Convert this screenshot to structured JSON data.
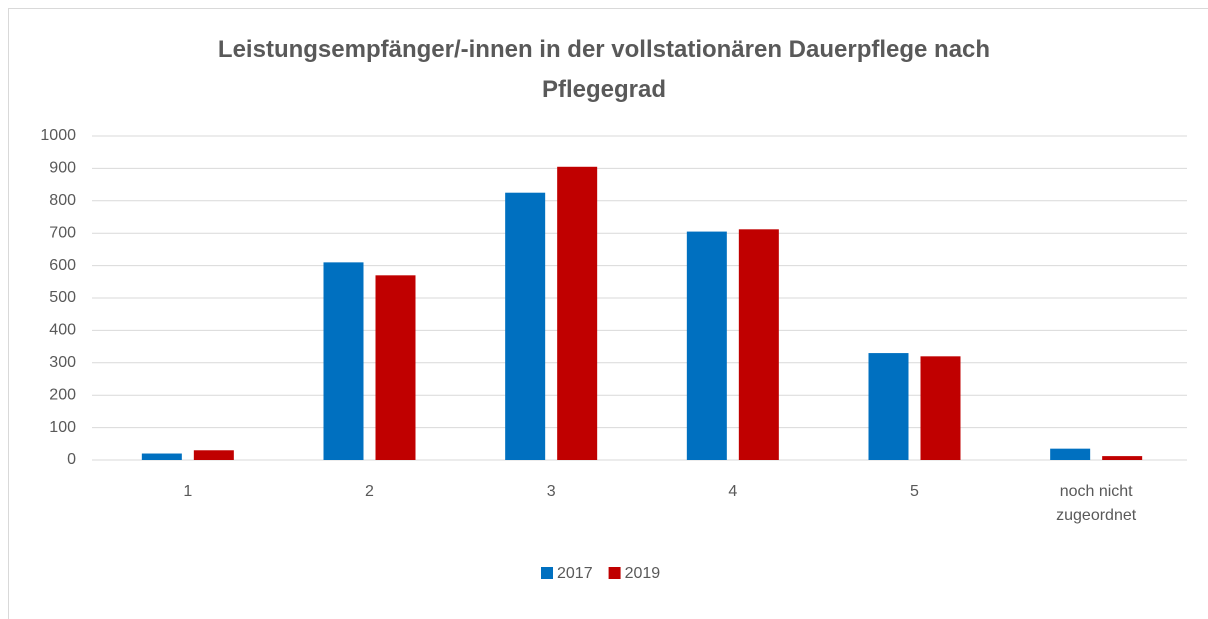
{
  "chart_data": {
    "type": "bar",
    "title": "Leistungsempfänger/-innen in der vollstationären Dauerpflege nach Pflegegrad",
    "categories": [
      "1",
      "2",
      "3",
      "4",
      "5",
      "noch nicht zugeordnet"
    ],
    "series": [
      {
        "name": "2017",
        "color": "#0070c0",
        "values": [
          20,
          610,
          825,
          705,
          330,
          35
        ]
      },
      {
        "name": "2019",
        "color": "#c00000",
        "values": [
          30,
          570,
          905,
          712,
          320,
          12
        ]
      }
    ],
    "ylim": [
      0,
      1000
    ],
    "yticks": [
      0,
      100,
      200,
      300,
      400,
      500,
      600,
      700,
      800,
      900,
      1000
    ],
    "grid": true,
    "legend": "bottom"
  }
}
